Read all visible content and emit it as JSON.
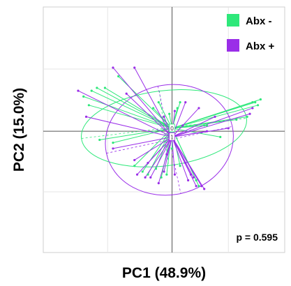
{
  "chart_data": {
    "type": "scatter",
    "subtype": "pcoa-spider-ellipse",
    "xlabel": "PC1 (48.9%)",
    "ylabel": "PC2 (15.0%)",
    "annotation": "p = 0.595",
    "xlim": [
      -4.8,
      4.2
    ],
    "ylim": [
      -4.2,
      4.3
    ],
    "grid": true,
    "legend_position": "top-right",
    "series": [
      {
        "name": "Abx -",
        "color": "#2ee87a",
        "centroid_label": "0",
        "centroid": [
          0.0,
          0.1
        ],
        "ellipse": {
          "cx": -0.3,
          "cy": 0.1,
          "rx": 3.1,
          "ry": 1.3,
          "angle_deg": 7
        },
        "points": [
          [
            -3.3,
            1.2
          ],
          [
            -3.0,
            1.4
          ],
          [
            -2.8,
            1.5
          ],
          [
            -2.5,
            1.5
          ],
          [
            -3.1,
            0.9
          ],
          [
            -2.7,
            -0.3
          ],
          [
            -2.2,
            -0.4
          ],
          [
            -1.4,
            -1.2
          ],
          [
            -1.1,
            -1.4
          ],
          [
            -0.9,
            -1.5
          ],
          [
            -0.6,
            -1.3
          ],
          [
            -0.4,
            -1.6
          ],
          [
            -0.2,
            -1.5
          ],
          [
            -0.7,
            0.8
          ],
          [
            -0.5,
            1.0
          ],
          [
            -2.0,
            1.9
          ],
          [
            0.2,
            0.8
          ],
          [
            -0.1,
            0.6
          ],
          [
            0.3,
            1.0
          ],
          [
            1.2,
            0.2
          ],
          [
            1.8,
            -0.2
          ],
          [
            2.4,
            0.4
          ],
          [
            2.8,
            0.5
          ],
          [
            3.0,
            1.0
          ],
          [
            3.2,
            0.9
          ],
          [
            3.3,
            1.1
          ],
          [
            3.1,
            1.0
          ],
          [
            0.9,
            -1.7
          ],
          [
            1.0,
            -1.9
          ],
          [
            0.3,
            -1.2
          ],
          [
            0.0,
            -0.6
          ],
          [
            1.3,
            0.2
          ]
        ]
      },
      {
        "name": "Abx +",
        "color": "#9a2ee8",
        "centroid_label": "1",
        "centroid": [
          0.0,
          -0.2
        ],
        "ellipse": {
          "cx": -0.1,
          "cy": -0.3,
          "rx": 2.4,
          "ry": 1.9,
          "angle_deg": 12
        },
        "points": [
          [
            -3.5,
            1.4
          ],
          [
            -3.2,
            0.5
          ],
          [
            -2.2,
            2.2
          ],
          [
            -1.4,
            2.2
          ],
          [
            -1.7,
            1.3
          ],
          [
            -2.2,
            -0.6
          ],
          [
            -1.4,
            -1.0
          ],
          [
            -1.3,
            -1.5
          ],
          [
            -1.0,
            -1.6
          ],
          [
            -0.8,
            -1.6
          ],
          [
            -0.5,
            -1.8
          ],
          [
            -0.3,
            -1.4
          ],
          [
            0.1,
            -1.5
          ],
          [
            0.5,
            -1.1
          ],
          [
            0.9,
            -1.9
          ],
          [
            1.1,
            -1.9
          ],
          [
            1.2,
            -2.0
          ],
          [
            0.8,
            -1.6
          ],
          [
            0.1,
            0.7
          ],
          [
            -0.3,
            0.5
          ],
          [
            0.5,
            1.0
          ],
          [
            1.3,
            0.0
          ],
          [
            1.6,
            0.5
          ],
          [
            2.1,
            0.1
          ],
          [
            2.9,
            0.6
          ],
          [
            3.0,
            0.8
          ],
          [
            0.7,
            -1.5
          ],
          [
            -0.9,
            -1.1
          ],
          [
            0.4,
            0.2
          ],
          [
            1.0,
            0.8
          ],
          [
            -0.2,
            -0.8
          ],
          [
            0.6,
            -1.7
          ]
        ]
      }
    ]
  }
}
